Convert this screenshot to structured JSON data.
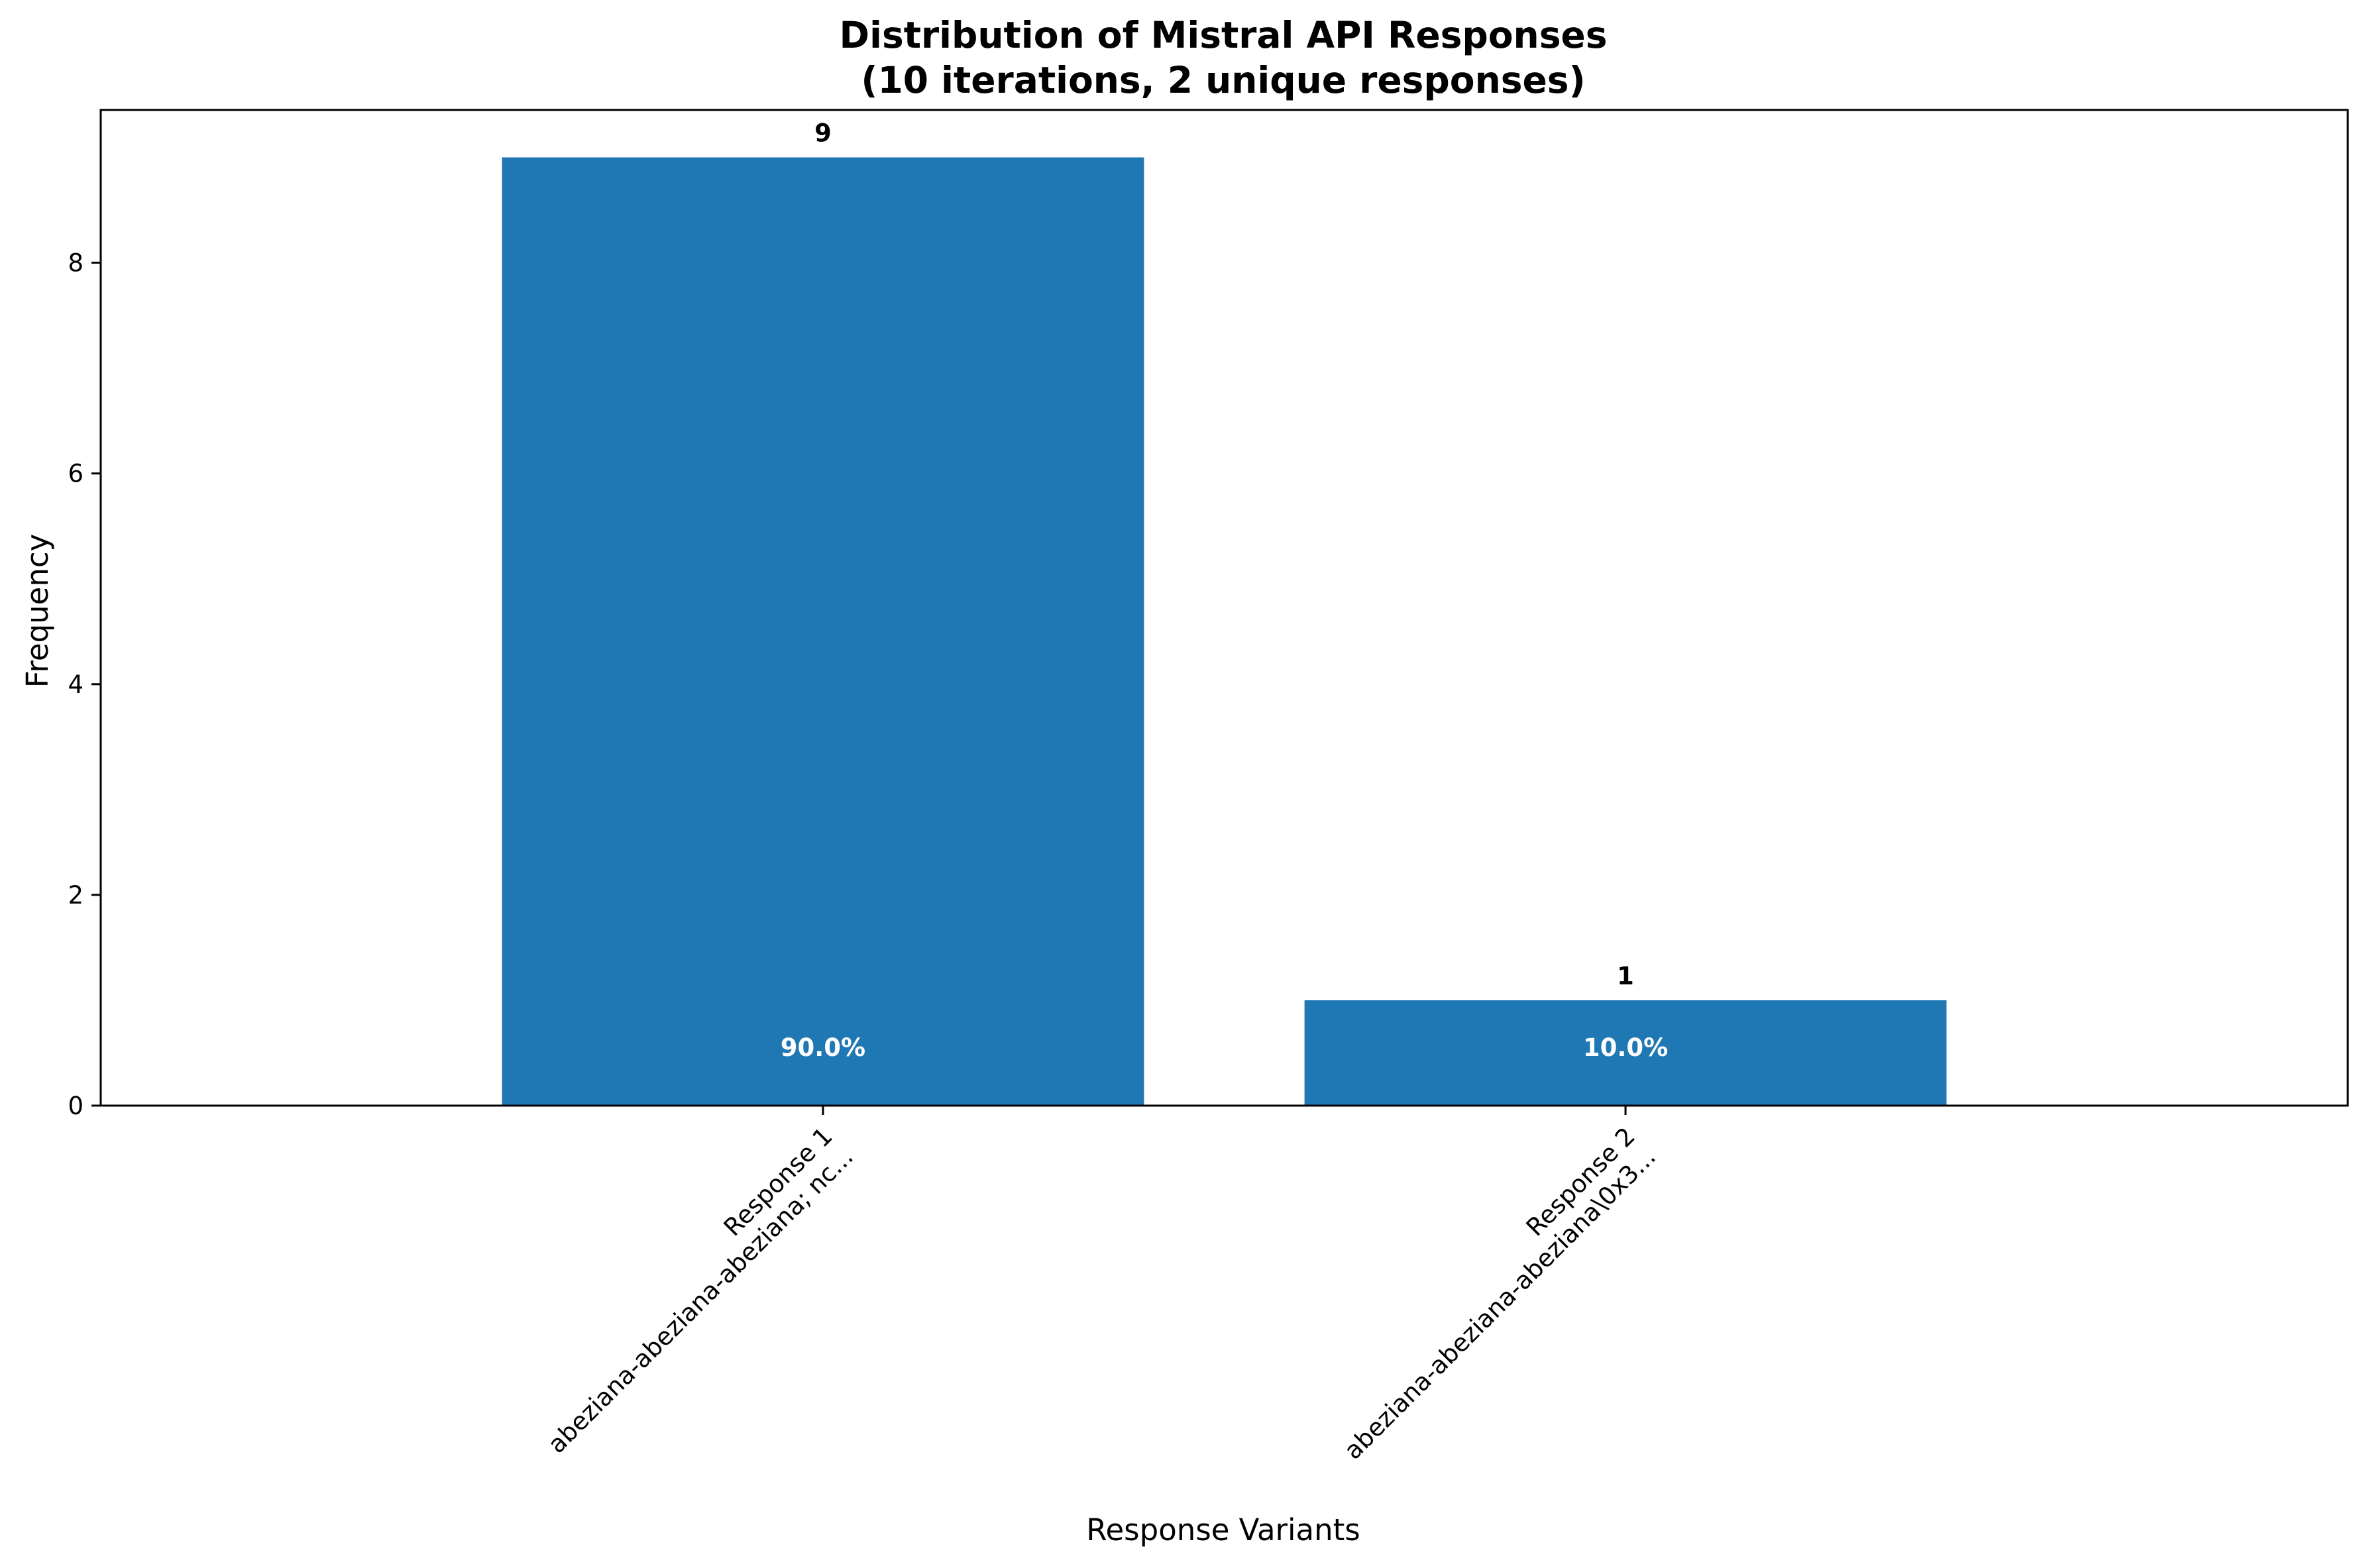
{
  "chart_data": {
    "type": "bar",
    "title": "Distribution of Mistral API Responses",
    "subtitle": "(10 iterations, 2 unique responses)",
    "xlabel": "Response Variants",
    "ylabel": "Frequency",
    "categories": [
      [
        "Response 1",
        "abeziana-abeziana-abeziana; nc..."
      ],
      [
        "Response 2",
        "abeziana-abeziana-abeziana\\0x3..."
      ]
    ],
    "values": [
      9,
      1
    ],
    "value_labels": [
      "9",
      "1"
    ],
    "percent_labels": [
      "90.0%",
      "10.0%"
    ],
    "ylim": [
      0,
      9.45
    ],
    "yticks": [
      0,
      2,
      4,
      6,
      8
    ],
    "grid": false,
    "bar_color": "#1f77b4"
  }
}
